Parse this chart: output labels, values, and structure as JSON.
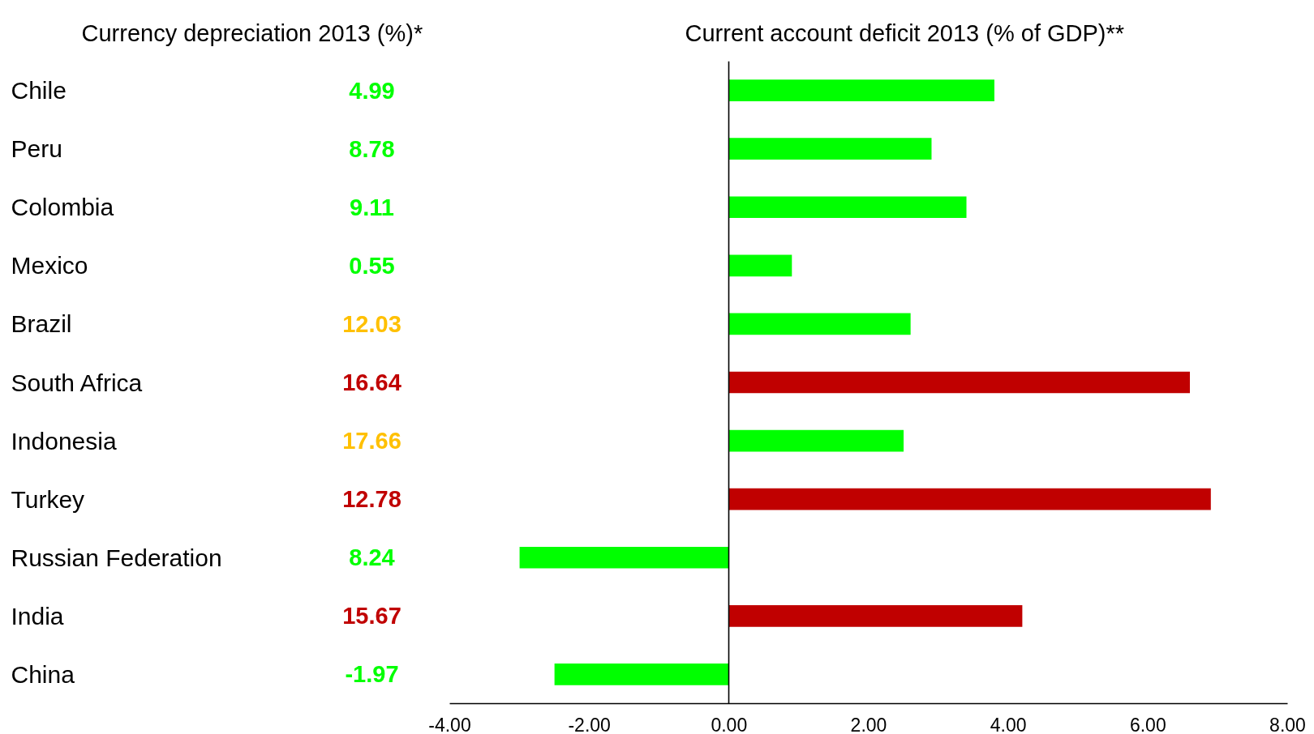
{
  "chart_data": [
    {
      "type": "other",
      "title": "Currency depreciation 2013 (%)*",
      "categories": [
        "Chile",
        "Peru",
        "Colombia",
        "Mexico",
        "Brazil",
        "South Africa",
        "Indonesia",
        "Turkey",
        "Russian Federation",
        "India",
        "China"
      ],
      "values": [
        4.99,
        8.78,
        9.11,
        0.55,
        12.03,
        16.64,
        17.66,
        12.78,
        8.24,
        15.67,
        -1.97
      ],
      "colors": [
        "#00ff00",
        "#00ff00",
        "#00ff00",
        "#00ff00",
        "#ffc000",
        "#c00000",
        "#ffc000",
        "#c00000",
        "#00ff00",
        "#c00000",
        "#00ff00"
      ],
      "data_labels": true
    },
    {
      "type": "bar",
      "orientation": "horizontal",
      "title": "Current account deficit 2013 (% of GDP)**",
      "categories": [
        null,
        null,
        null,
        null,
        null,
        null,
        null,
        null,
        null,
        null,
        null
      ],
      "values": [
        3.8,
        2.9,
        3.4,
        0.9,
        2.6,
        6.6,
        2.5,
        6.9,
        -3.0,
        4.2,
        -2.5
      ],
      "colors": [
        "#00ff00",
        "#00ff00",
        "#00ff00",
        "#00ff00",
        "#00ff00",
        "#c00000",
        "#00ff00",
        "#c00000",
        "#00ff00",
        "#c00000",
        "#00ff00"
      ],
      "xlim": [
        -4,
        8
      ],
      "xticks": [
        {
          "value": -4,
          "label": "-4.00"
        },
        {
          "value": -2,
          "label": "-2.00"
        },
        {
          "value": 0,
          "label": "0.00"
        },
        {
          "value": 2,
          "label": "2.00"
        },
        {
          "value": 4,
          "label": "4.00"
        },
        {
          "value": 6,
          "label": "6.00"
        },
        {
          "value": 8,
          "label": "8.00"
        }
      ]
    }
  ]
}
